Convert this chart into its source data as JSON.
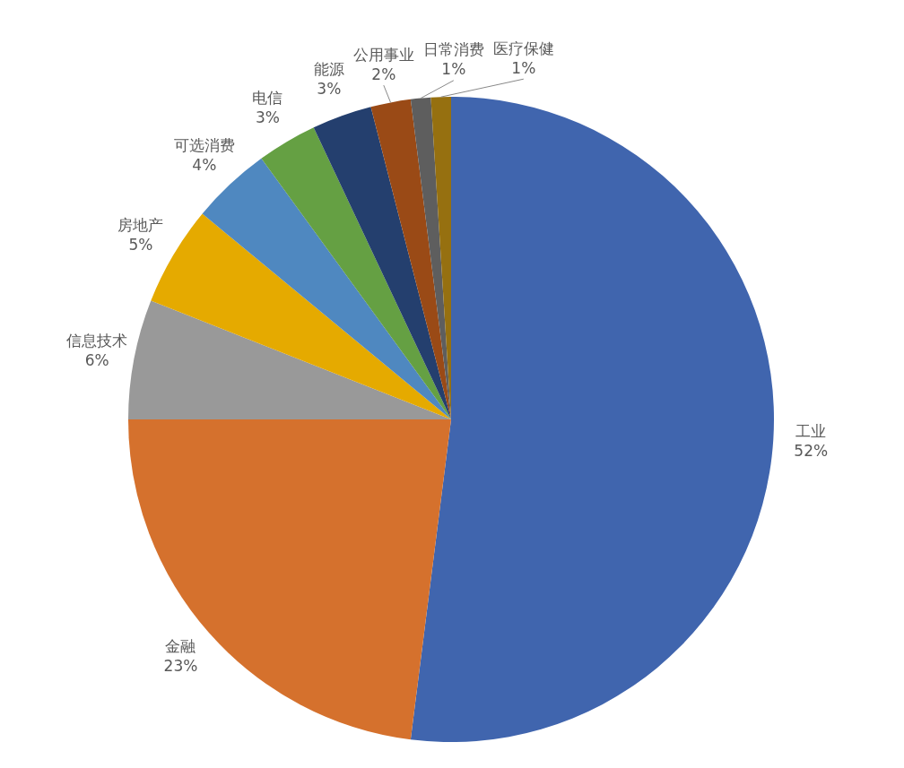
{
  "chart_data": {
    "type": "pie",
    "categories": [
      "工业",
      "金融",
      "信息技术",
      "房地产",
      "可选消费",
      "电信",
      "能源",
      "公用事业",
      "日常消费",
      "医疗保健"
    ],
    "values": [
      52,
      23,
      6,
      5,
      4,
      3,
      3,
      2,
      1,
      1
    ],
    "value_labels": [
      "52%",
      "23%",
      "6%",
      "5%",
      "4%",
      "3%",
      "3%",
      "2%",
      "1%",
      "1%"
    ],
    "colors": [
      "#4065ae",
      "#d5712d",
      "#999999",
      "#e5aa00",
      "#4f88c0",
      "#65a043",
      "#243f6e",
      "#9a4a16",
      "#5e5e5e",
      "#967010"
    ],
    "legend": false
  }
}
